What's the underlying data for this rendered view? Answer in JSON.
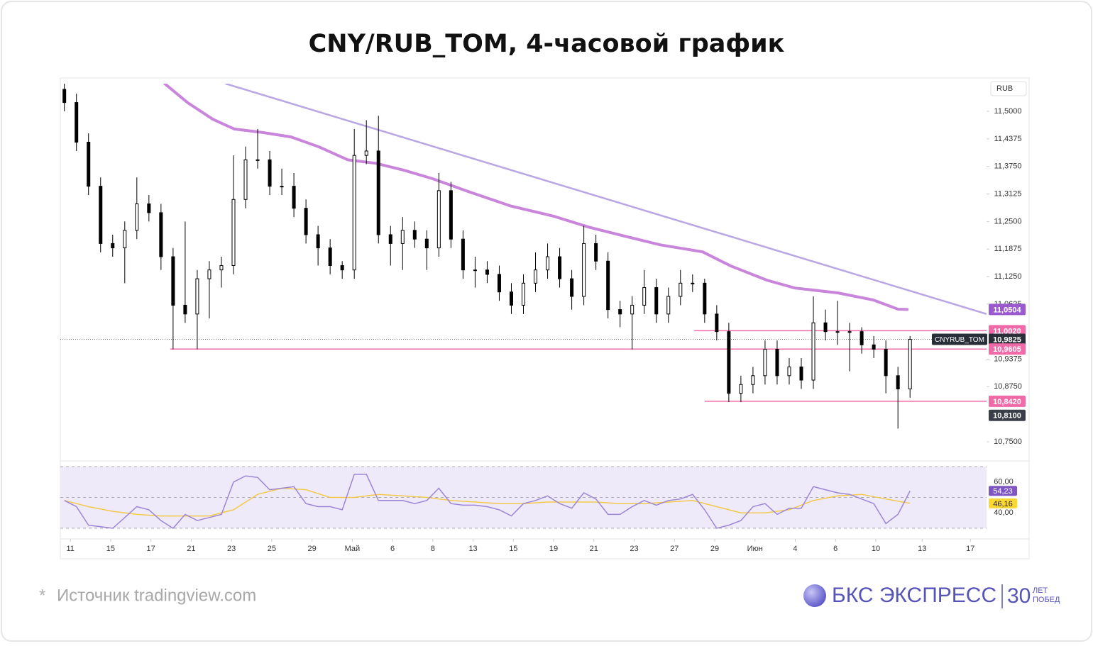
{
  "chart_data": {
    "type": "candlestick",
    "title": "CNY/RUB_TOM, 4-часовой график",
    "y_unit": "RUB",
    "xlim": [
      0,
      230
    ],
    "ylim": [
      10.7146,
      11.5628
    ],
    "xticks": [
      {
        "value": 2.5,
        "label": "11"
      },
      {
        "value": 12.5,
        "label": "15"
      },
      {
        "value": 22.5,
        "label": "17"
      },
      {
        "value": 32.5,
        "label": "21"
      },
      {
        "value": 42.5,
        "label": "23"
      },
      {
        "value": 52.5,
        "label": "25"
      },
      {
        "value": 62.5,
        "label": "29"
      },
      {
        "value": 72.5,
        "label": "Май"
      },
      {
        "value": 82.5,
        "label": "6"
      },
      {
        "value": 92.5,
        "label": "8"
      },
      {
        "value": 102.5,
        "label": "13"
      },
      {
        "value": 112.5,
        "label": "15"
      },
      {
        "value": 122.5,
        "label": "19"
      },
      {
        "value": 132.5,
        "label": "21"
      },
      {
        "value": 142.5,
        "label": "23"
      },
      {
        "value": 152.5,
        "label": "27"
      },
      {
        "value": 162.5,
        "label": "29"
      },
      {
        "value": 172.5,
        "label": "Июн"
      },
      {
        "value": 182.5,
        "label": "4"
      },
      {
        "value": 192.5,
        "label": "6"
      },
      {
        "value": 202.5,
        "label": "10"
      },
      {
        "value": 214,
        "label": "13"
      },
      {
        "value": 226,
        "label": "17"
      }
    ],
    "yticks": [
      {
        "value": 10.75,
        "label": "10,7500"
      },
      {
        "value": 10.875,
        "label": "10,8750"
      },
      {
        "value": 10.9375,
        "label": "10,9375"
      },
      {
        "value": 11.0625,
        "label": "11,0625"
      },
      {
        "value": 11.125,
        "label": "11,1250"
      },
      {
        "value": 11.1875,
        "label": "11,1875"
      },
      {
        "value": 11.25,
        "label": "11,2500"
      },
      {
        "value": 11.3125,
        "label": "11,3125"
      },
      {
        "value": 11.375,
        "label": "11,3750"
      },
      {
        "value": 11.4375,
        "label": "11,4375"
      },
      {
        "value": 11.5,
        "label": "11,5000"
      }
    ],
    "up_color": "#ffffff",
    "down_color": "#000000",
    "candles": {
      "x": [
        1,
        4,
        7,
        10,
        13,
        16,
        19,
        22,
        25,
        28,
        31,
        34,
        37,
        40,
        43,
        46,
        49,
        52,
        55,
        58,
        61,
        64,
        67,
        70,
        73,
        76,
        79,
        82,
        85,
        88,
        91,
        94,
        97,
        100,
        103,
        106,
        109,
        112,
        115,
        118,
        121,
        124,
        127,
        130,
        133,
        136,
        139,
        142,
        145,
        148,
        151,
        154,
        157,
        160,
        163,
        166,
        169,
        172,
        175,
        178,
        181,
        184,
        187,
        190,
        193,
        196,
        199,
        202,
        205,
        208,
        211
      ],
      "open": [
        11.55,
        11.52,
        11.43,
        11.33,
        11.2,
        11.19,
        11.23,
        11.29,
        11.27,
        11.17,
        11.06,
        11.04,
        11.12,
        11.14,
        11.15,
        11.3,
        11.39,
        11.39,
        11.33,
        11.33,
        11.28,
        11.22,
        11.19,
        11.15,
        11.14,
        11.4,
        11.41,
        11.22,
        11.2,
        11.23,
        11.21,
        11.19,
        11.32,
        11.21,
        11.14,
        11.14,
        11.13,
        11.09,
        11.06,
        11.11,
        11.14,
        11.17,
        11.12,
        11.08,
        11.2,
        11.16,
        11.05,
        11.04,
        11.06,
        11.1,
        11.04,
        11.08,
        11.11,
        11.11,
        11.04,
        11.0,
        10.86,
        10.88,
        10.9,
        10.96,
        10.9,
        10.92,
        10.89,
        11.02,
        11.0,
        11.0,
        11.0,
        10.97,
        10.96,
        10.9,
        10.87
      ],
      "high": [
        11.57,
        11.54,
        11.45,
        11.35,
        11.22,
        11.25,
        11.35,
        11.31,
        11.29,
        11.19,
        11.25,
        11.14,
        11.16,
        11.17,
        11.4,
        11.42,
        11.46,
        11.41,
        11.37,
        11.36,
        11.3,
        11.24,
        11.21,
        11.16,
        11.46,
        11.48,
        11.49,
        11.24,
        11.26,
        11.25,
        11.23,
        11.36,
        11.34,
        11.23,
        11.17,
        11.16,
        11.15,
        11.11,
        11.13,
        11.18,
        11.2,
        11.19,
        11.14,
        11.24,
        11.22,
        11.18,
        11.07,
        11.08,
        11.14,
        11.12,
        11.1,
        11.14,
        11.13,
        11.12,
        11.06,
        11.02,
        10.9,
        10.92,
        10.98,
        10.98,
        10.94,
        10.94,
        11.08,
        11.05,
        11.07,
        11.02,
        11.01,
        10.99,
        10.98,
        10.92,
        10.99
      ],
      "low": [
        11.5,
        11.41,
        11.31,
        11.18,
        11.17,
        11.11,
        11.21,
        11.25,
        11.14,
        10.96,
        11.02,
        10.96,
        11.03,
        11.1,
        11.13,
        11.28,
        11.37,
        11.31,
        11.31,
        11.26,
        11.2,
        11.15,
        11.13,
        11.12,
        11.12,
        11.38,
        11.2,
        11.15,
        11.14,
        11.19,
        11.14,
        11.17,
        11.19,
        11.12,
        11.1,
        11.11,
        11.07,
        11.04,
        11.04,
        11.09,
        11.12,
        11.1,
        11.05,
        11.06,
        11.14,
        11.03,
        11.01,
        10.96,
        11.04,
        11.02,
        11.02,
        11.06,
        11.09,
        11.02,
        10.98,
        10.84,
        10.84,
        10.86,
        10.88,
        10.88,
        10.88,
        10.87,
        10.87,
        10.98,
        10.97,
        10.91,
        10.95,
        10.94,
        10.86,
        10.78,
        10.85
      ],
      "close": [
        11.52,
        11.43,
        11.33,
        11.2,
        11.19,
        11.23,
        11.29,
        11.27,
        11.17,
        11.06,
        11.04,
        11.12,
        11.14,
        11.15,
        11.3,
        11.39,
        11.39,
        11.33,
        11.33,
        11.28,
        11.22,
        11.19,
        11.15,
        11.14,
        11.4,
        11.41,
        11.22,
        11.2,
        11.23,
        11.21,
        11.19,
        11.32,
        11.21,
        11.14,
        11.14,
        11.13,
        11.09,
        11.06,
        11.11,
        11.14,
        11.17,
        11.12,
        11.08,
        11.2,
        11.16,
        11.05,
        11.04,
        11.06,
        11.1,
        11.04,
        11.08,
        11.11,
        11.11,
        11.04,
        11.0,
        10.86,
        10.88,
        10.9,
        10.96,
        10.9,
        10.92,
        10.89,
        11.02,
        11.0,
        11.0,
        11.0,
        10.97,
        10.96,
        10.9,
        10.87,
        10.9825
      ]
    },
    "ma": {
      "color": "#c985dc",
      "x": [
        25.9,
        31.7,
        37.9,
        43.2,
        50.2,
        57.3,
        64.3,
        71.4,
        78.4,
        85.5,
        92.5,
        101.3,
        111.9,
        122.5,
        131.3,
        140.1,
        149.0,
        159.5,
        166.5,
        175.4,
        182.4,
        193.0,
        201.8,
        208.0,
        210.3
      ],
      "values": [
        11.563,
        11.519,
        11.482,
        11.46,
        11.452,
        11.442,
        11.419,
        11.39,
        11.382,
        11.366,
        11.347,
        11.318,
        11.285,
        11.262,
        11.237,
        11.217,
        11.197,
        11.181,
        11.149,
        11.117,
        11.099,
        11.088,
        11.072,
        11.051,
        11.0504
      ]
    },
    "trendline": {
      "color": "#b9a6e4",
      "x": [
        41,
        230
      ],
      "values": [
        11.563,
        11.04
      ]
    },
    "levels": [
      {
        "value": 11.002,
        "x": [
          157.4,
          230
        ],
        "color": "#f06aa8"
      },
      {
        "value": 10.9605,
        "x": [
          27.3,
          230
        ],
        "color": "#f06aa8"
      },
      {
        "value": 10.842,
        "x": [
          160,
          230
        ],
        "color": "#f06aa8"
      }
    ],
    "price_labels": [
      {
        "value": 11.0504,
        "label": "11,0504",
        "color": "#9b59d0"
      },
      {
        "value": 11.002,
        "label": "11,0020",
        "color": "#f06aa8"
      },
      {
        "value": 10.9825,
        "label": "10,9825",
        "color": "#2a2e39",
        "symbol": "CNYRUB_TOM",
        "line": "dotted"
      },
      {
        "value": 10.9605,
        "label": "10,9605",
        "color": "#f06aa8"
      },
      {
        "value": 10.842,
        "label": "10,8420",
        "color": "#f06aa8"
      },
      {
        "value": 10.81,
        "label": "10,8100",
        "color": "#3a3e49"
      }
    ],
    "rsi": {
      "ylim": [
        24,
        73.7
      ],
      "yticks": [
        {
          "value": 40,
          "label": "40,00"
        },
        {
          "value": 60,
          "label": "60,00"
        }
      ],
      "bands": [
        30,
        50,
        70
      ],
      "band_color": "#efeafa",
      "color": "#9d85d6",
      "values": [
        48,
        44,
        32,
        31,
        30,
        37,
        44,
        42,
        35,
        30,
        39,
        35,
        37,
        39,
        60,
        64,
        63,
        55,
        56,
        57,
        46,
        44,
        44,
        42,
        65,
        65,
        48,
        48,
        48,
        46,
        48,
        56,
        46,
        45,
        45,
        44,
        42,
        38,
        46,
        48,
        51,
        46,
        43,
        53,
        49,
        39,
        39,
        44,
        48,
        45,
        48,
        49,
        52,
        42,
        30,
        32,
        35,
        44,
        46,
        39,
        43,
        43,
        57,
        55,
        53,
        52,
        49,
        46,
        33,
        39,
        54.23
      ],
      "signal": {
        "color": "#f2c94c",
        "x": [
          1,
          7,
          13,
          19,
          25,
          31,
          37,
          43,
          49,
          55,
          61,
          67,
          73,
          79,
          85,
          91,
          97,
          103,
          109,
          115,
          121,
          127,
          133,
          139,
          145,
          151,
          157,
          163,
          169,
          175,
          181,
          187,
          193,
          199,
          205,
          211
        ],
        "values": [
          48,
          44,
          41,
          39,
          38,
          38,
          38,
          42,
          52,
          56,
          55,
          50,
          50,
          52,
          51,
          50,
          48,
          47,
          46,
          46,
          47,
          47,
          47,
          46,
          46,
          47,
          48,
          44,
          40,
          40,
          42,
          48,
          51,
          52,
          49,
          46.16
        ]
      },
      "labels": [
        {
          "value": 54.23,
          "label": "54,23",
          "color": "#7e57c2",
          "text_color": "#ffffff"
        },
        {
          "value": 46.16,
          "label": "46,16",
          "color": "#fdd835",
          "text_color": "#222222"
        }
      ]
    }
  },
  "footer": {
    "marker": "*",
    "source": "Источник tradingview.com",
    "brand": "БКС ЭКСПРЕСС",
    "anniversary": "30",
    "anniversary_top": "ЛЕТ",
    "anniversary_bottom": "ПОБЕД"
  }
}
